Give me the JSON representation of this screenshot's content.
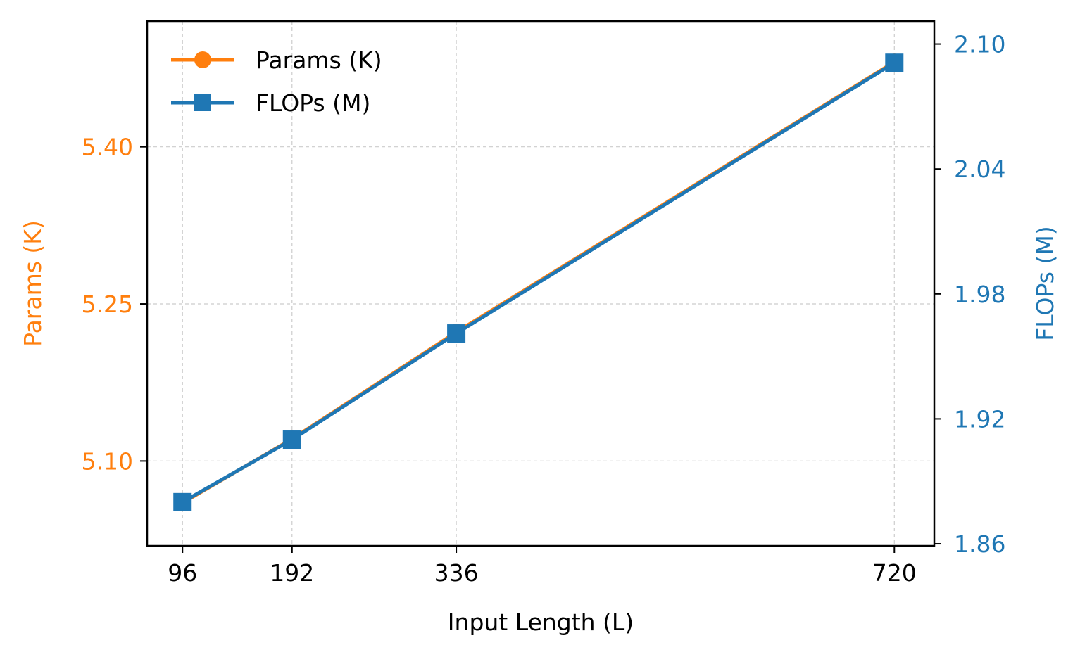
{
  "chart_data": {
    "type": "line",
    "xlabel": "Input Length (L)",
    "ylabel_left": "Params (K)",
    "ylabel_right": "FLOPs (M)",
    "x": [
      96,
      192,
      336,
      720
    ],
    "x_ticks": [
      96,
      192,
      336,
      720
    ],
    "x_tick_labels": [
      "96",
      "192",
      "336",
      "720"
    ],
    "xlim": [
      65,
      755
    ],
    "ylim_left": [
      5.019,
      5.52
    ],
    "y_left_ticks": [
      5.1,
      5.25,
      5.4
    ],
    "y_left_tick_labels": [
      "5.10",
      "5.25",
      "5.40"
    ],
    "ylim_right": [
      1.859,
      2.111
    ],
    "y_right_ticks": [
      1.86,
      1.92,
      1.98,
      2.04,
      2.1
    ],
    "y_right_tick_labels": [
      "1.86",
      "1.92",
      "1.98",
      "2.04",
      "2.10"
    ],
    "series": [
      {
        "name": "Params (K)",
        "axis": "left",
        "marker": "circle",
        "color": "#ff7f0e",
        "values": [
          5.06,
          5.121,
          5.223,
          5.481
        ]
      },
      {
        "name": "FLOPs (M)",
        "axis": "right",
        "marker": "square",
        "color": "#1f77b4",
        "values": [
          1.88,
          1.91,
          1.961,
          2.091
        ]
      }
    ],
    "grid": true,
    "legend_position": "top-left",
    "left_axis_color": "#ff7f0e",
    "right_axis_color": "#1f77b4"
  }
}
